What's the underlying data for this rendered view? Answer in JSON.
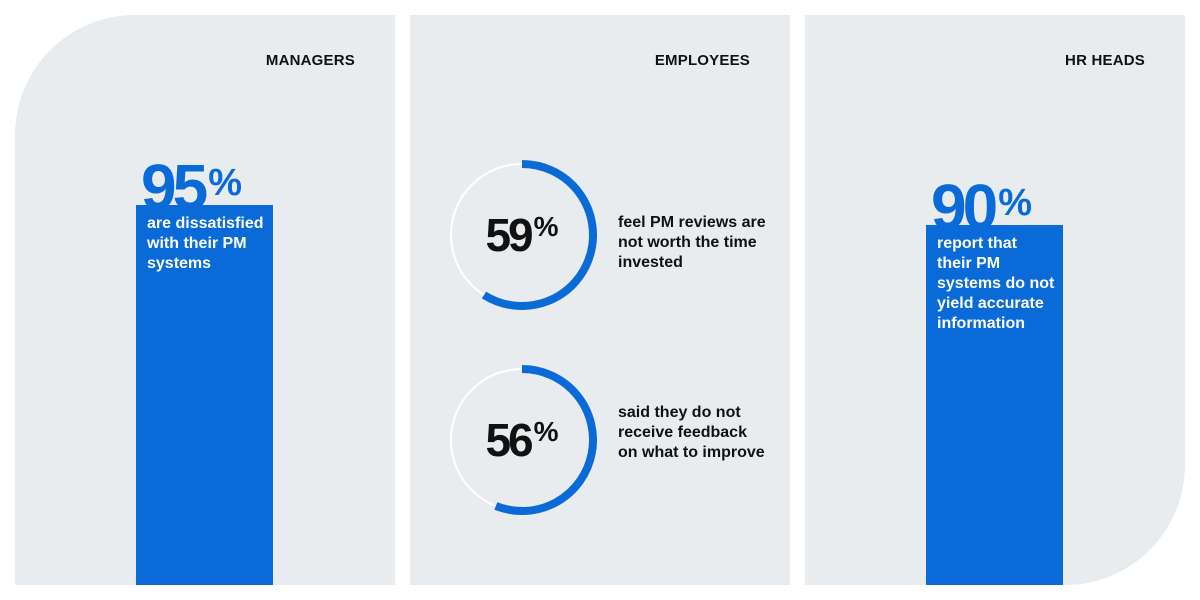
{
  "colors": {
    "accent": "#0a6bd8",
    "panel_bg": "#e9ecee",
    "ring_track": "#ffffff",
    "text_dark": "#111111"
  },
  "panels": {
    "managers": {
      "title": "MANAGERS",
      "percent": "95",
      "pct_sign": "%",
      "caption": "are dissatisfied with their PM systems"
    },
    "employees": {
      "title": "EMPLOYEES",
      "stats": [
        {
          "percent": "59",
          "pct_sign": "%",
          "caption": "feel PM reviews are not worth the time invested"
        },
        {
          "percent": "56",
          "pct_sign": "%",
          "caption": "said they do not receive feedback on what to improve"
        }
      ]
    },
    "hr": {
      "title": "HR HEADS",
      "percent": "90",
      "pct_sign": "%",
      "caption": "report that their PM systems do not yield accurate information"
    }
  },
  "chart_data": [
    {
      "type": "bar",
      "categories": [
        "Managers"
      ],
      "values": [
        95
      ],
      "ylim": [
        0,
        100
      ],
      "title": "MANAGERS"
    },
    {
      "type": "pie",
      "categories": [
        "feel PM reviews are not worth the time invested"
      ],
      "values": [
        59
      ],
      "title": ""
    },
    {
      "type": "pie",
      "categories": [
        "said they do not receive feedback on what to improve"
      ],
      "values": [
        56
      ],
      "title": ""
    },
    {
      "type": "bar",
      "categories": [
        "HR heads"
      ],
      "values": [
        90
      ],
      "ylim": [
        0,
        100
      ],
      "title": "HR HEADS"
    }
  ]
}
